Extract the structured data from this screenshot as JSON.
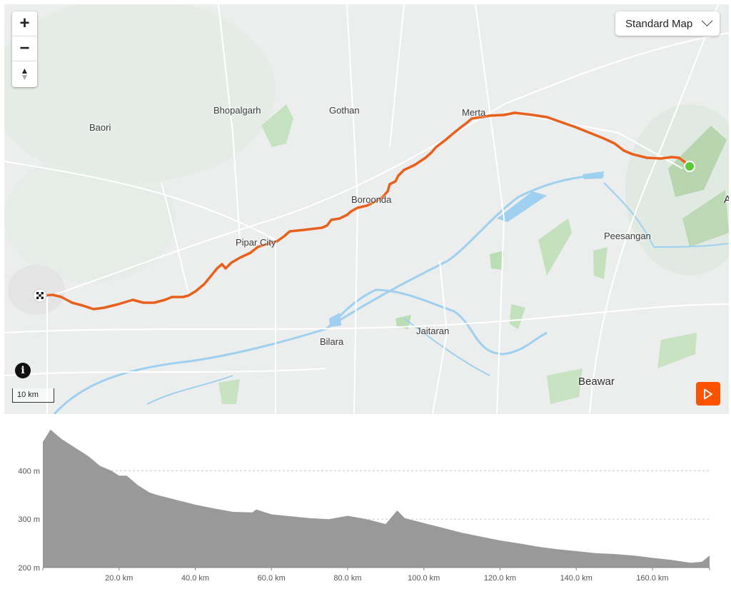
{
  "map": {
    "map_type_label": "Standard Map",
    "zoom_in": "+",
    "zoom_out": "−",
    "compass": "▲",
    "info_icon": "i",
    "scale_label": "10 km",
    "places": [
      "Baori",
      "Bhopalgarh",
      "Gothan",
      "Merta",
      "Boroonda",
      "Pipar City",
      "Peesangan",
      "Bilara",
      "Jaitaran",
      "Beawar",
      "A"
    ],
    "route_color": "#e8601c",
    "start_color": "#5cc93b",
    "accent": "#fc5200"
  },
  "elevation": {
    "y_labels": [
      "400 m",
      "300 m",
      "200 m"
    ],
    "x_labels": [
      "20.0 km",
      "40.0 km",
      "60.0 km",
      "80.0 km",
      "100.0 km",
      "120.0 km",
      "140.0 km",
      "160.0 km"
    ],
    "fill_color": "#999999"
  },
  "chart_data": {
    "type": "area",
    "x": [
      0,
      1,
      2,
      5,
      8,
      10,
      12,
      15,
      18,
      20,
      22,
      25,
      28,
      30,
      35,
      40,
      45,
      50,
      55,
      56,
      60,
      65,
      70,
      75,
      80,
      85,
      90,
      93,
      95,
      100,
      105,
      110,
      115,
      120,
      125,
      130,
      135,
      140,
      145,
      150,
      155,
      160,
      165,
      170,
      173,
      175
    ],
    "y": [
      460,
      472,
      485,
      465,
      450,
      440,
      430,
      410,
      400,
      390,
      390,
      370,
      355,
      350,
      340,
      330,
      322,
      315,
      314,
      320,
      310,
      306,
      302,
      300,
      307,
      300,
      290,
      318,
      302,
      292,
      282,
      272,
      264,
      256,
      250,
      243,
      238,
      234,
      230,
      228,
      225,
      220,
      216,
      210,
      212,
      225
    ],
    "xlabel": "",
    "ylabel": "",
    "xlim": [
      0,
      175
    ],
    "ylim": [
      200,
      490
    ],
    "grid": true
  }
}
